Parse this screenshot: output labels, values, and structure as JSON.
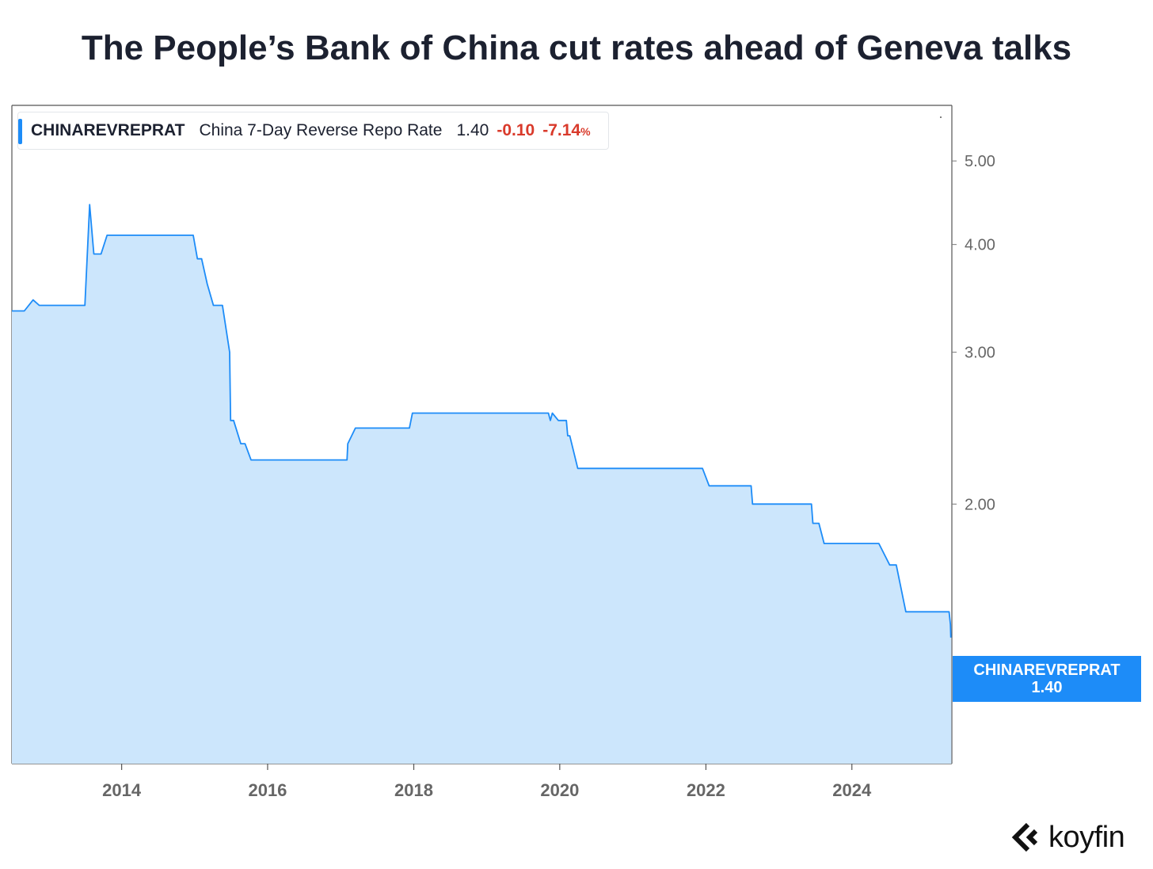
{
  "title": "The People’s Bank of China cut rates ahead of Geneva talks",
  "legend": {
    "ticker": "CHINAREVREPRAT",
    "name": "China 7-Day Reverse Repo Rate",
    "value": "1.40",
    "change": "-0.10",
    "change_pct": "-7.14",
    "pct_sign": "%"
  },
  "price_tag": {
    "ticker": "CHINAREVREPRAT",
    "value": "1.40"
  },
  "logo": {
    "word": "koyfin"
  },
  "colors": {
    "line": "#1d8cf8",
    "fill": "#cce6fc",
    "negative": "#d93a2b"
  },
  "chart_data": {
    "type": "area",
    "title": "The People’s Bank of China cut rates ahead of Geneva talks",
    "xlabel": "",
    "ylabel": "",
    "y_scale": "log",
    "ylim": [
      1.0,
      5.8
    ],
    "xlim": [
      "2012-07-01",
      "2025-05-15"
    ],
    "x_ticks": [
      "2014",
      "2016",
      "2018",
      "2020",
      "2022",
      "2024"
    ],
    "y_ticks": [
      "5.00",
      "4.00",
      "3.00",
      "2.00"
    ],
    "grid": false,
    "legend_position": "top-left",
    "series": [
      {
        "name": "CHINAREVREPRAT",
        "x": [
          "2012-07-01",
          "2012-09-01",
          "2012-10-15",
          "2012-11-15",
          "2013-07-01",
          "2013-07-25",
          "2013-08-15",
          "2013-09-20",
          "2013-10-20",
          "2013-11-10",
          "2014-12-25",
          "2015-01-15",
          "2015-02-05",
          "2015-03-05",
          "2015-04-05",
          "2015-05-05",
          "2015-05-20",
          "2015-06-25",
          "2015-06-30",
          "2015-07-15",
          "2015-08-20",
          "2015-09-10",
          "2015-10-10",
          "2015-10-28",
          "2017-02-01",
          "2017-02-05",
          "2017-03-15",
          "2017-12-10",
          "2017-12-25",
          "2019-11-05",
          "2019-11-15",
          "2019-11-25",
          "2019-12-25",
          "2020-02-03",
          "2020-02-10",
          "2020-02-20",
          "2020-03-31",
          "2021-12-15",
          "2022-01-17",
          "2022-08-15",
          "2022-08-22",
          "2023-06-13",
          "2023-06-20",
          "2023-07-20",
          "2023-08-15",
          "2024-05-15",
          "2024-07-08",
          "2024-07-22",
          "2024-08-10",
          "2024-09-27",
          "2025-05-01",
          "2025-05-08",
          "2025-05-10"
        ],
        "y": [
          3.35,
          3.35,
          3.45,
          3.4,
          3.4,
          4.45,
          3.9,
          3.9,
          4.1,
          4.1,
          4.1,
          3.85,
          3.85,
          3.6,
          3.4,
          3.4,
          3.4,
          3.0,
          2.5,
          2.5,
          2.35,
          2.35,
          2.25,
          2.25,
          2.25,
          2.35,
          2.45,
          2.45,
          2.55,
          2.55,
          2.5,
          2.55,
          2.5,
          2.5,
          2.4,
          2.4,
          2.2,
          2.2,
          2.1,
          2.1,
          2.0,
          2.0,
          1.9,
          1.9,
          1.8,
          1.8,
          1.7,
          1.7,
          1.7,
          1.5,
          1.5,
          1.45,
          1.4
        ]
      }
    ]
  }
}
